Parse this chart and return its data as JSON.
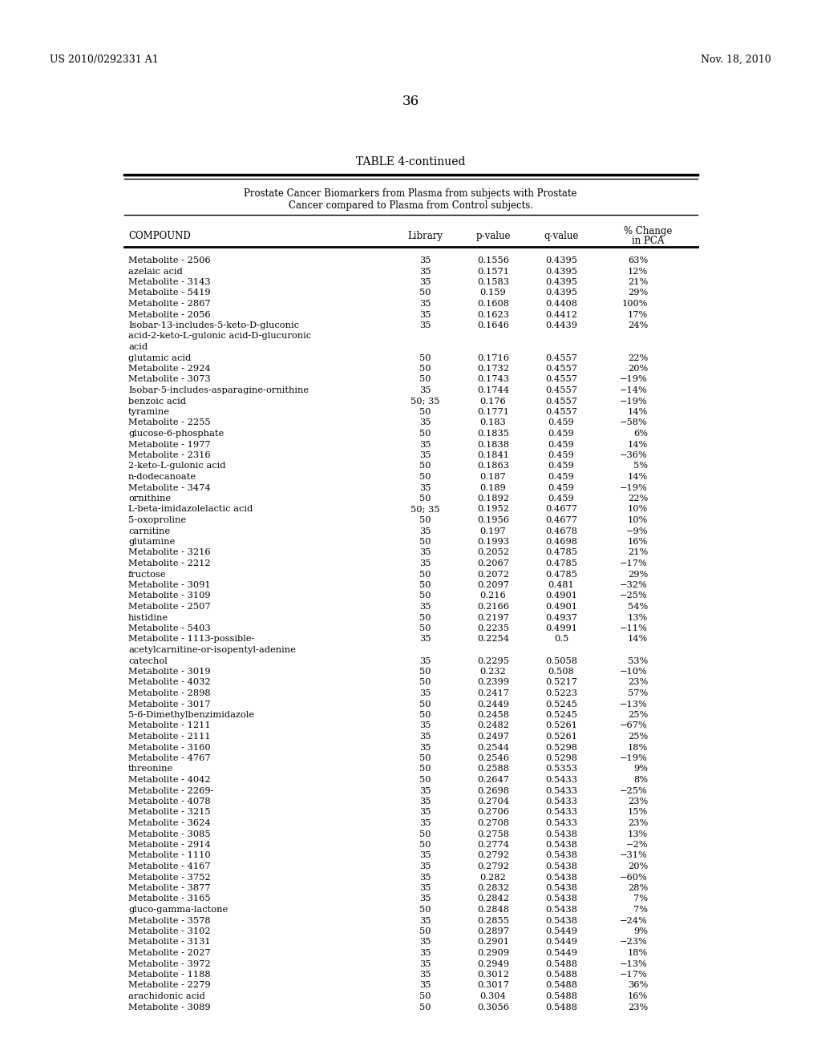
{
  "header_left": "US 2010/0292331 A1",
  "header_right": "Nov. 18, 2010",
  "page_number": "36",
  "table_title": "TABLE 4-continued",
  "table_subtitle1": "Prostate Cancer Biomarkers from Plasma from subjects with Prostate",
  "table_subtitle2": "Cancer compared to Plasma from Control subjects.",
  "rows": [
    [
      "Metabolite - 2506",
      "35",
      "0.1556",
      "0.4395",
      "63%",
      1
    ],
    [
      "azelaic acid",
      "35",
      "0.1571",
      "0.4395",
      "12%",
      1
    ],
    [
      "Metabolite - 3143",
      "35",
      "0.1583",
      "0.4395",
      "21%",
      1
    ],
    [
      "Metabolite - 5419",
      "50",
      "0.159",
      "0.4395",
      "29%",
      1
    ],
    [
      "Metabolite - 2867",
      "35",
      "0.1608",
      "0.4408",
      "100%",
      1
    ],
    [
      "Metabolite - 2056",
      "35",
      "0.1623",
      "0.4412",
      "17%",
      1
    ],
    [
      "Isobar-13-includes-5-keto-D-gluconic",
      "35",
      "0.1646",
      "0.4439",
      "24%",
      3
    ],
    [
      "glutamic acid",
      "50",
      "0.1716",
      "0.4557",
      "22%",
      1
    ],
    [
      "Metabolite - 2924",
      "50",
      "0.1732",
      "0.4557",
      "20%",
      1
    ],
    [
      "Metabolite - 3073",
      "50",
      "0.1743",
      "0.4557",
      "−19%",
      1
    ],
    [
      "Isobar-5-includes-asparagine-ornithine",
      "35",
      "0.1744",
      "0.4557",
      "−14%",
      1
    ],
    [
      "benzoic acid",
      "50; 35",
      "0.176",
      "0.4557",
      "−19%",
      1
    ],
    [
      "tyramine",
      "50",
      "0.1771",
      "0.4557",
      "14%",
      1
    ],
    [
      "Metabolite - 2255",
      "35",
      "0.183",
      "0.459",
      "−58%",
      1
    ],
    [
      "glucose-6-phosphate",
      "50",
      "0.1835",
      "0.459",
      "6%",
      1
    ],
    [
      "Metabolite - 1977",
      "35",
      "0.1838",
      "0.459",
      "14%",
      1
    ],
    [
      "Metabolite - 2316",
      "35",
      "0.1841",
      "0.459",
      "−36%",
      1
    ],
    [
      "2-keto-L-gulonic acid",
      "50",
      "0.1863",
      "0.459",
      "5%",
      1
    ],
    [
      "n-dodecanoate",
      "50",
      "0.187",
      "0.459",
      "14%",
      1
    ],
    [
      "Metabolite - 3474",
      "35",
      "0.189",
      "0.459",
      "−19%",
      1
    ],
    [
      "ornithine",
      "50",
      "0.1892",
      "0.459",
      "22%",
      1
    ],
    [
      "L-beta-imidazolelactic acid",
      "50; 35",
      "0.1952",
      "0.4677",
      "10%",
      1
    ],
    [
      "5-oxoproline",
      "50",
      "0.1956",
      "0.4677",
      "10%",
      1
    ],
    [
      "carnitine",
      "35",
      "0.197",
      "0.4678",
      "−9%",
      1
    ],
    [
      "glutamine",
      "50",
      "0.1993",
      "0.4698",
      "16%",
      1
    ],
    [
      "Metabolite - 3216",
      "35",
      "0.2052",
      "0.4785",
      "21%",
      1
    ],
    [
      "Metabolite - 2212",
      "35",
      "0.2067",
      "0.4785",
      "−17%",
      1
    ],
    [
      "fructose",
      "50",
      "0.2072",
      "0.4785",
      "29%",
      1
    ],
    [
      "Metabolite - 3091",
      "50",
      "0.2097",
      "0.481",
      "−32%",
      1
    ],
    [
      "Metabolite - 3109",
      "50",
      "0.216",
      "0.4901",
      "−25%",
      1
    ],
    [
      "Metabolite - 2507",
      "35",
      "0.2166",
      "0.4901",
      "54%",
      1
    ],
    [
      "histidine",
      "50",
      "0.2197",
      "0.4937",
      "13%",
      1
    ],
    [
      "Metabolite - 5403",
      "50",
      "0.2235",
      "0.4991",
      "−11%",
      1
    ],
    [
      "Metabolite - 1113-possible-",
      "35",
      "0.2254",
      "0.5",
      "14%",
      2
    ],
    [
      "catechol",
      "35",
      "0.2295",
      "0.5058",
      "53%",
      1
    ],
    [
      "Metabolite - 3019",
      "50",
      "0.232",
      "0.508",
      "−10%",
      1
    ],
    [
      "Metabolite - 4032",
      "50",
      "0.2399",
      "0.5217",
      "23%",
      1
    ],
    [
      "Metabolite - 2898",
      "35",
      "0.2417",
      "0.5223",
      "57%",
      1
    ],
    [
      "Metabolite - 3017",
      "50",
      "0.2449",
      "0.5245",
      "−13%",
      1
    ],
    [
      "5-6-Dimethylbenzimidazole",
      "50",
      "0.2458",
      "0.5245",
      "25%",
      1
    ],
    [
      "Metabolite - 1211",
      "35",
      "0.2482",
      "0.5261",
      "−67%",
      1
    ],
    [
      "Metabolite - 2111",
      "35",
      "0.2497",
      "0.5261",
      "25%",
      1
    ],
    [
      "Metabolite - 3160",
      "35",
      "0.2544",
      "0.5298",
      "18%",
      1
    ],
    [
      "Metabolite - 4767",
      "50",
      "0.2546",
      "0.5298",
      "−19%",
      1
    ],
    [
      "threonine",
      "50",
      "0.2588",
      "0.5353",
      "9%",
      1
    ],
    [
      "Metabolite - 4042",
      "50",
      "0.2647",
      "0.5433",
      "8%",
      1
    ],
    [
      "Metabolite - 2269-",
      "35",
      "0.2698",
      "0.5433",
      "−25%",
      1
    ],
    [
      "Metabolite - 4078",
      "35",
      "0.2704",
      "0.5433",
      "23%",
      1
    ],
    [
      "Metabolite - 3215",
      "35",
      "0.2706",
      "0.5433",
      "15%",
      1
    ],
    [
      "Metabolite - 3624",
      "35",
      "0.2708",
      "0.5433",
      "23%",
      1
    ],
    [
      "Metabolite - 3085",
      "50",
      "0.2758",
      "0.5438",
      "13%",
      1
    ],
    [
      "Metabolite - 2914",
      "50",
      "0.2774",
      "0.5438",
      "−2%",
      1
    ],
    [
      "Metabolite - 1110",
      "35",
      "0.2792",
      "0.5438",
      "−31%",
      1
    ],
    [
      "Metabolite - 4167",
      "35",
      "0.2792",
      "0.5438",
      "20%",
      1
    ],
    [
      "Metabolite - 3752",
      "35",
      "0.282",
      "0.5438",
      "−60%",
      1
    ],
    [
      "Metabolite - 3877",
      "35",
      "0.2832",
      "0.5438",
      "28%",
      1
    ],
    [
      "Metabolite - 3165",
      "35",
      "0.2842",
      "0.5438",
      "7%",
      1
    ],
    [
      "gluco-gamma-lactone",
      "50",
      "0.2848",
      "0.5438",
      "7%",
      1
    ],
    [
      "Metabolite - 3578",
      "35",
      "0.2855",
      "0.5438",
      "−24%",
      1
    ],
    [
      "Metabolite - 3102",
      "50",
      "0.2897",
      "0.5449",
      "9%",
      1
    ],
    [
      "Metabolite - 3131",
      "35",
      "0.2901",
      "0.5449",
      "−23%",
      1
    ],
    [
      "Metabolite - 2027",
      "35",
      "0.2909",
      "0.5449",
      "18%",
      1
    ],
    [
      "Metabolite - 3972",
      "35",
      "0.2949",
      "0.5488",
      "−13%",
      1
    ],
    [
      "Metabolite - 1188",
      "35",
      "0.3012",
      "0.5488",
      "−17%",
      1
    ],
    [
      "Metabolite - 2279",
      "35",
      "0.3017",
      "0.5488",
      "36%",
      1
    ],
    [
      "arachidonic acid",
      "50",
      "0.304",
      "0.5488",
      "16%",
      1
    ],
    [
      "Metabolite - 3089",
      "50",
      "0.3056",
      "0.5488",
      "23%",
      1
    ]
  ],
  "multiline_extras": {
    "6": [
      "acid-2-keto-L-gulonic acid-D-glucuronic",
      "acid"
    ],
    "33": [
      "acetylcarnitine-or-isopentyl-adenine"
    ]
  }
}
